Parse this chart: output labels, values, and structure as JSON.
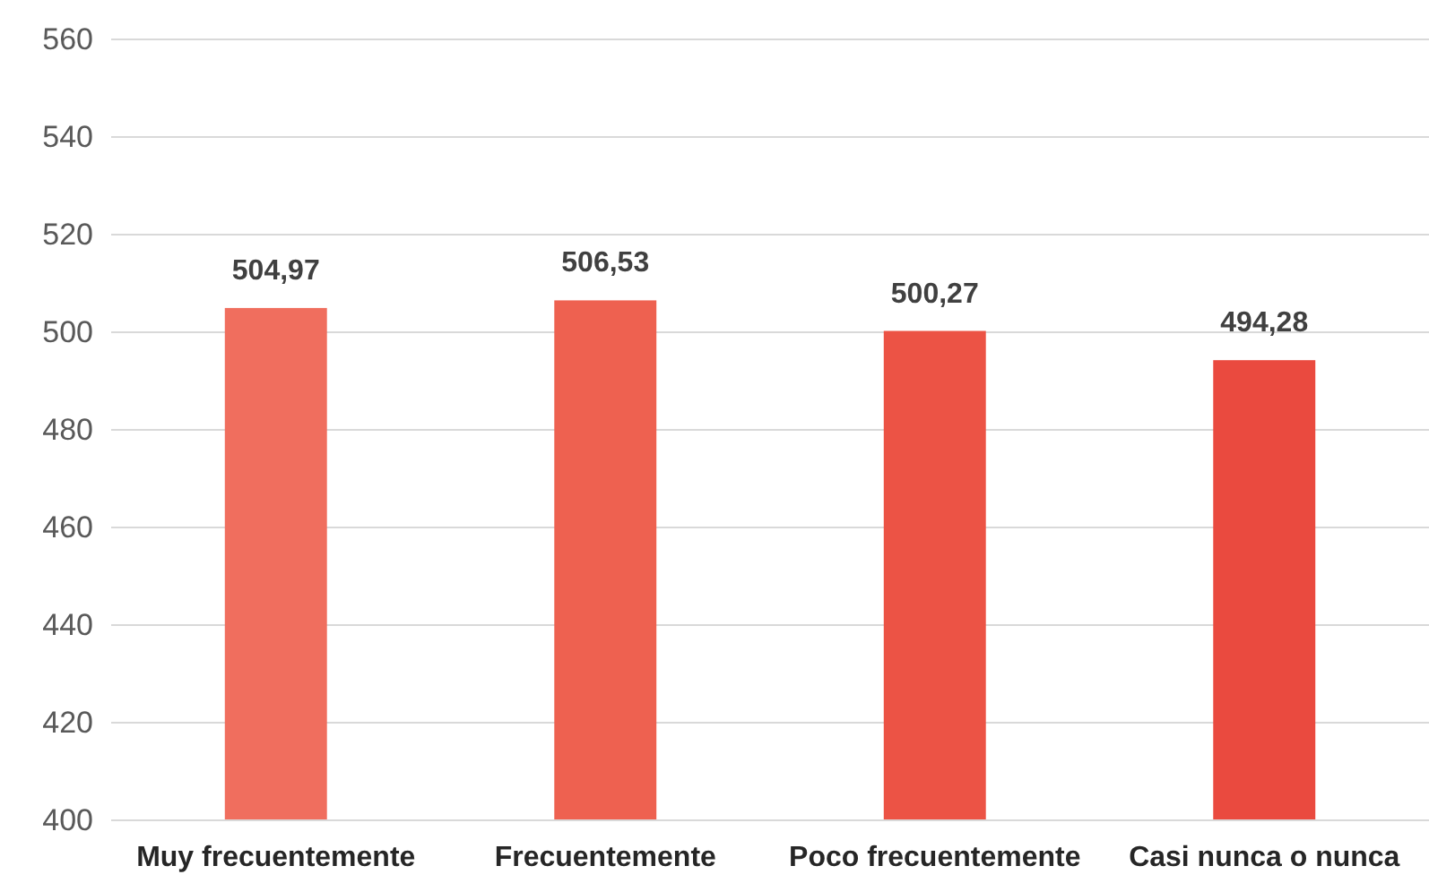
{
  "chart_data": {
    "type": "bar",
    "categories": [
      "Muy frecuentemente",
      "Frecuentemente",
      "Poco frecuentemente",
      "Casi nunca o nunca"
    ],
    "values": [
      504.97,
      506.53,
      500.27,
      494.28
    ],
    "colors": [
      "#f06e5e",
      "#ee6150",
      "#ec5345",
      "#ea4a3f"
    ],
    "value_labels": [
      "504,97",
      "506,53",
      "500,27",
      "494,28"
    ],
    "ylim": [
      400,
      560
    ],
    "yticks": [
      400,
      420,
      440,
      460,
      480,
      500,
      520,
      540,
      560
    ],
    "grid": "y"
  }
}
